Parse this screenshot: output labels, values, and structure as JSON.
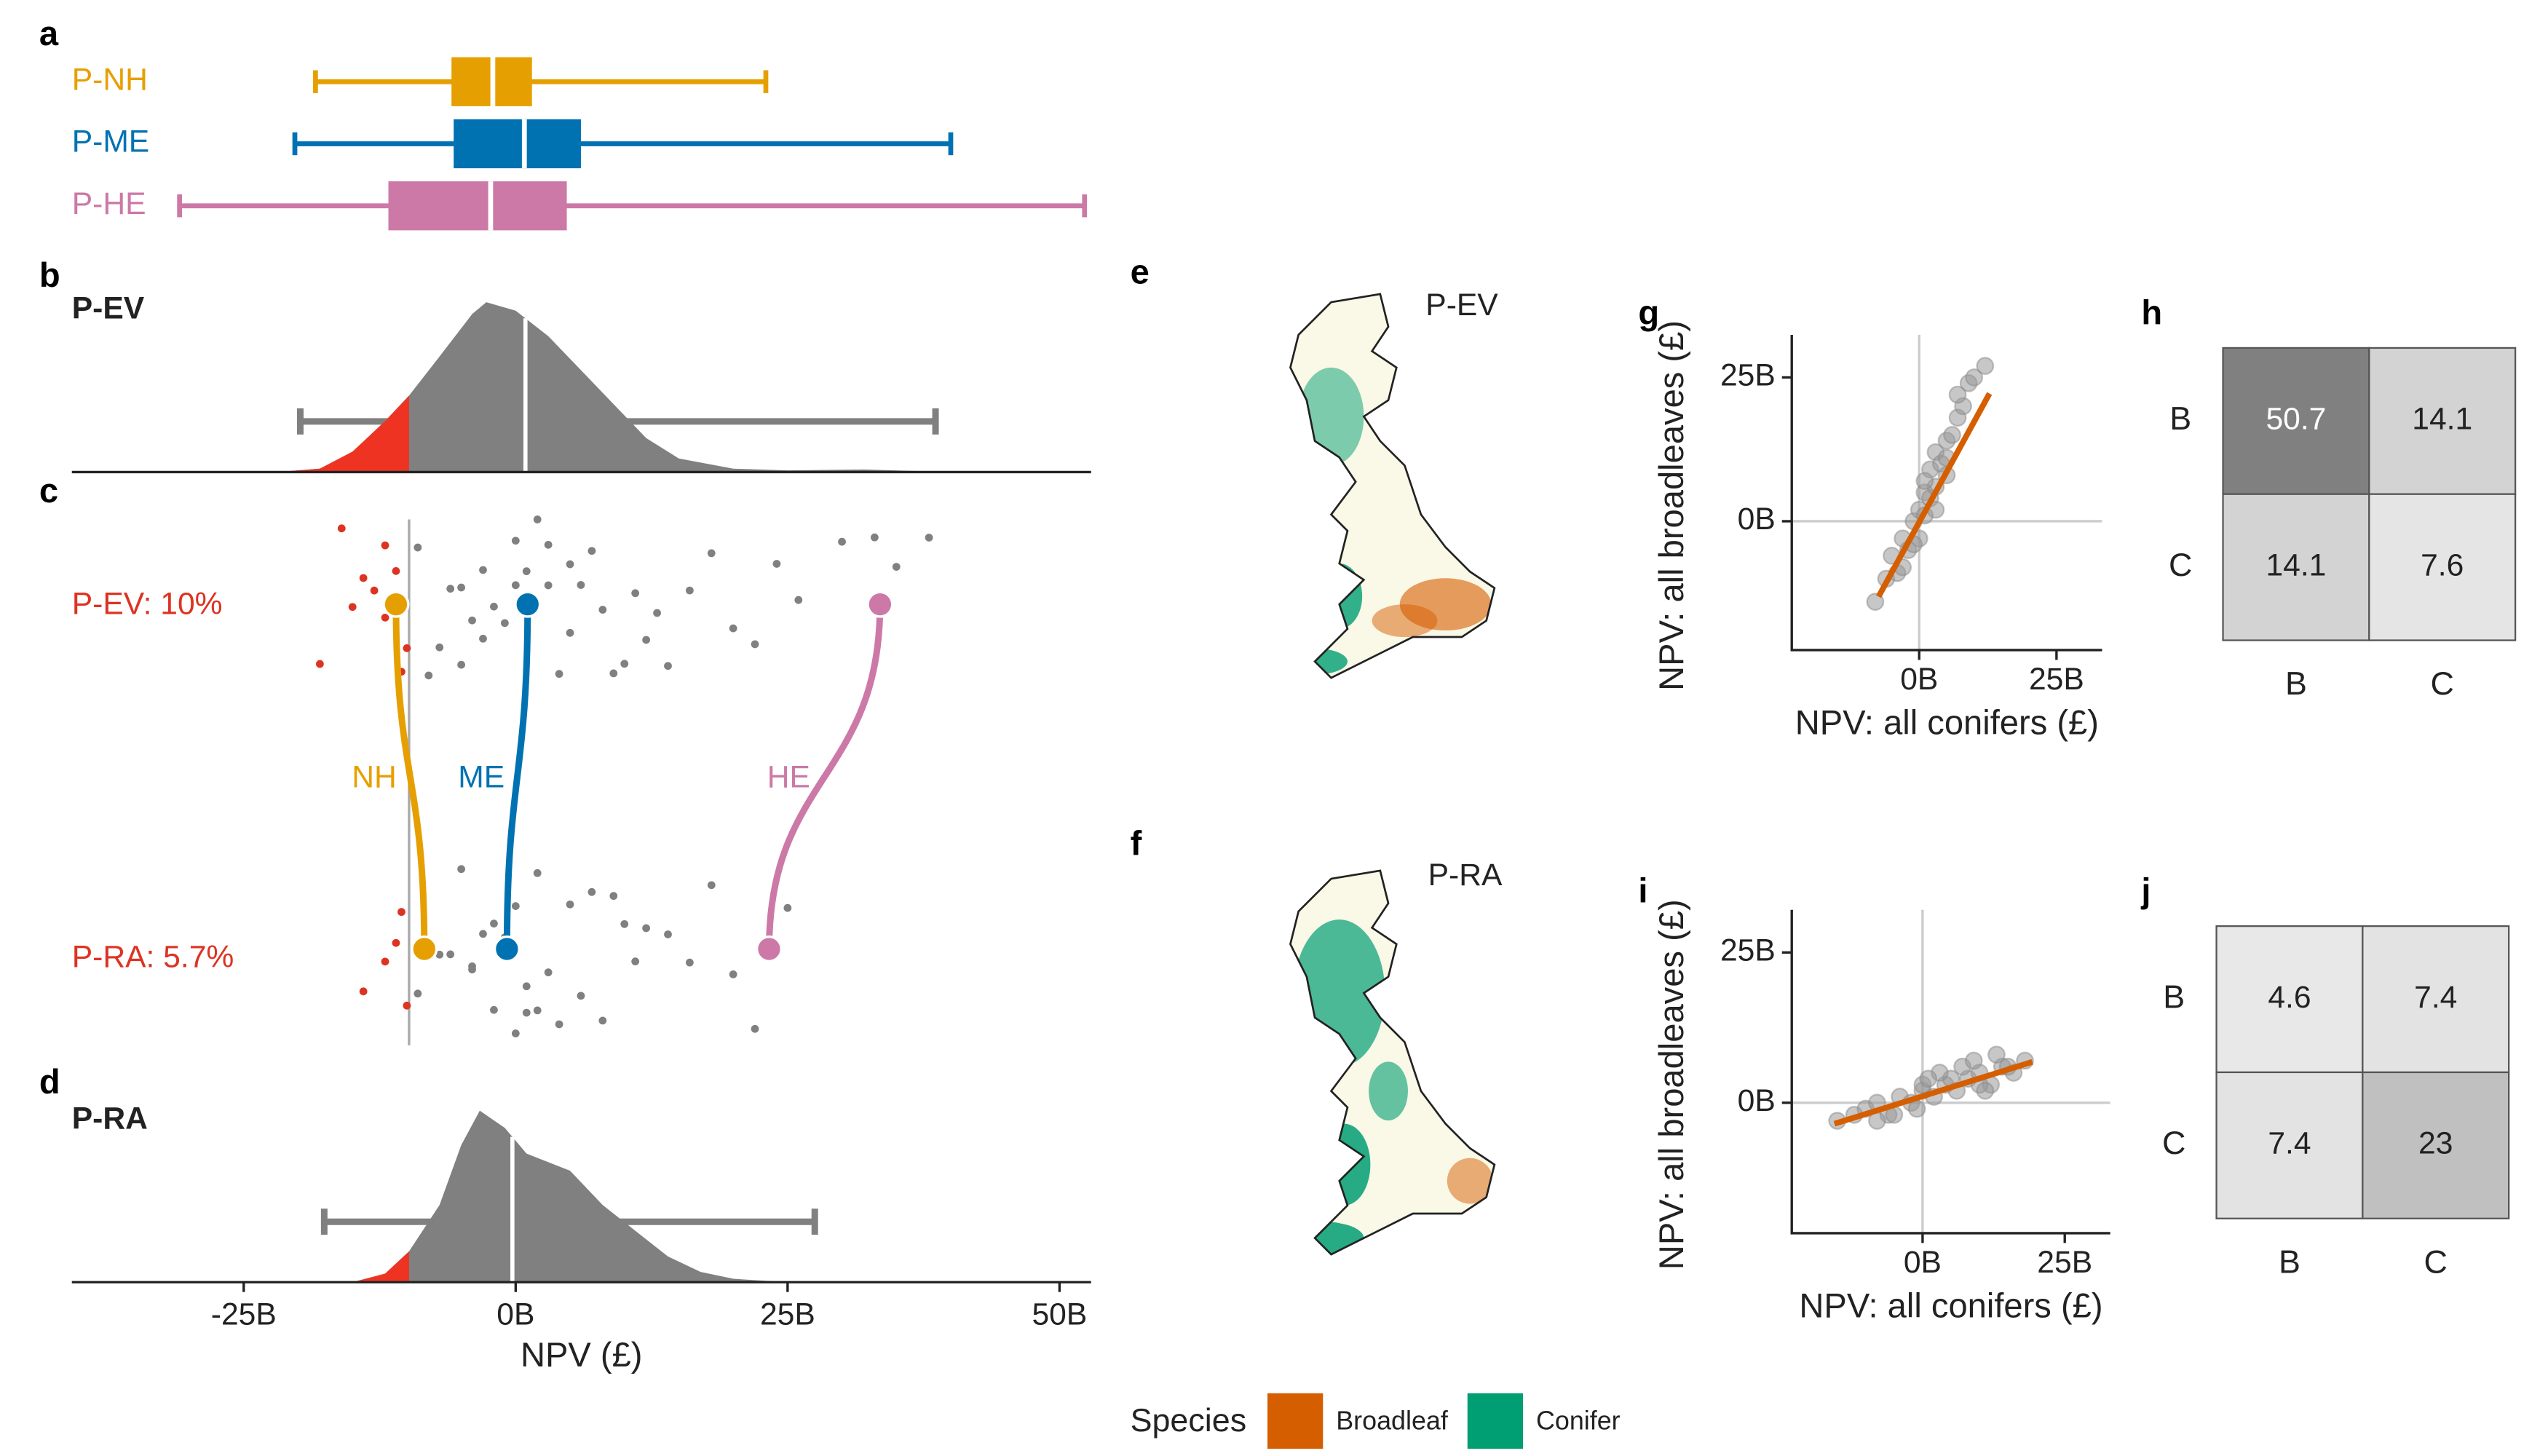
{
  "chart_data": [
    {
      "type": "boxplot",
      "panel": "a",
      "xlim": [
        -40.8,
        52.9
      ],
      "series": [
        {
          "name": "P-NH",
          "color": "#E69F00",
          "min": -18.4,
          "q1": -5.9,
          "median": -2.1,
          "q3": 1.5,
          "max": 23
        },
        {
          "name": "P-ME",
          "color": "#0072B2",
          "min": -20.3,
          "q1": -5.7,
          "median": 0.8,
          "q3": 6,
          "max": 40
        },
        {
          "name": "P-HE",
          "color": "#CC79A7",
          "min": -30.9,
          "q1": -11.7,
          "median": -2.3,
          "q3": 4.7,
          "max": 52.3
        }
      ]
    },
    {
      "type": "density",
      "panel": "b",
      "title": "P-EV",
      "xlim": [
        -40.8,
        52.9
      ],
      "threshold": -9.8,
      "median": 0.9,
      "range": [
        -19.8,
        38.6
      ],
      "color": "#808080",
      "tail_color": "#EE3322",
      "x": [
        -22,
        -18,
        -15,
        -12,
        -9.8,
        -7,
        -4,
        -2.7,
        0,
        3,
        6,
        9,
        12,
        15,
        20,
        25,
        32,
        40
      ],
      "density": [
        0,
        0.02,
        0.12,
        0.3,
        0.45,
        0.68,
        0.93,
        1,
        0.95,
        0.8,
        0.6,
        0.4,
        0.2,
        0.08,
        0.02,
        0.01,
        0.015,
        0
      ]
    },
    {
      "type": "strip",
      "panel": "c",
      "xlim": [
        -40.8,
        52.9
      ],
      "threshold": -9.8,
      "below_color": "#DD3322",
      "above_color": "#808080",
      "rows": [
        {
          "name": "P-EV: 10%",
          "values": [
            -18,
            -16,
            -15,
            -14,
            -13,
            -12,
            -12,
            -11,
            -11,
            -10.5,
            -10,
            -9,
            -8,
            -7,
            -6,
            -5,
            -5,
            -4,
            -3,
            -3,
            -2,
            -1,
            0,
            0,
            1,
            1,
            2,
            3,
            3,
            4,
            5,
            5,
            6,
            7,
            8,
            9,
            10,
            11,
            12,
            13,
            14,
            16,
            18,
            20,
            22,
            24,
            26,
            30,
            33,
            35,
            38
          ]
        },
        {
          "name": "P-RA: 5.7%",
          "values": [
            -14,
            -12,
            -11,
            -10.5,
            -10,
            -9,
            -8,
            -7,
            -6,
            -5,
            -4,
            -4,
            -3,
            -2,
            -2,
            -1,
            0,
            0,
            1,
            1,
            2,
            2,
            3,
            4,
            5,
            6,
            7,
            8,
            9,
            10,
            11,
            12,
            14,
            16,
            18,
            20,
            22,
            25
          ]
        }
      ],
      "links": [
        {
          "name": "NH",
          "color": "#E69F00",
          "from": -11,
          "to": -8.4
        },
        {
          "name": "ME",
          "color": "#0072B2",
          "from": 1.1,
          "to": -0.8
        },
        {
          "name": "HE",
          "color": "#CC79A7",
          "from": 33.5,
          "to": 23.3
        }
      ]
    },
    {
      "type": "density",
      "panel": "d",
      "title": "P-RA",
      "xlim": [
        -40.8,
        52.9
      ],
      "threshold": -9.8,
      "median": -0.3,
      "range": [
        -17.6,
        27.5
      ],
      "color": "#808080",
      "tail_color": "#EE3322",
      "x": [
        -15,
        -12,
        -9.8,
        -7,
        -5,
        -3.3,
        -1,
        1,
        3,
        5,
        8,
        11,
        14,
        17,
        20,
        25
      ],
      "density": [
        0,
        0.05,
        0.18,
        0.45,
        0.8,
        1,
        0.9,
        0.75,
        0.7,
        0.65,
        0.45,
        0.3,
        0.15,
        0.06,
        0.02,
        0
      ],
      "xlabel": "NPV (£)",
      "xticks": [
        {
          "value": -25,
          "label": "-25B"
        },
        {
          "value": 0,
          "label": "0B"
        },
        {
          "value": 25,
          "label": "25B"
        },
        {
          "value": 50,
          "label": "50B"
        }
      ]
    },
    {
      "type": "map",
      "panel": "e",
      "title": "P-EV"
    },
    {
      "type": "map",
      "panel": "f",
      "title": "P-RA"
    },
    {
      "type": "scatter",
      "panel": "g",
      "color": "#999999",
      "xlim": [
        -23.2,
        33.3
      ],
      "ylim": [
        -22.4,
        32.4
      ],
      "xlabel": "NPV: all conifers (£)",
      "ylabel": "NPV: all broadleaves (£)",
      "xticks": [
        {
          "value": 0,
          "label": "0B"
        },
        {
          "value": 25,
          "label": "25B"
        }
      ],
      "yticks": [
        {
          "value": 0,
          "label": "0B"
        },
        {
          "value": 25,
          "label": "25B"
        }
      ],
      "x": [
        -8,
        -6,
        -5,
        -4,
        -3,
        -2,
        -1,
        0,
        0,
        1,
        1,
        2,
        2,
        3,
        3,
        4,
        5,
        5,
        6,
        7,
        8,
        9,
        -3,
        -1,
        1,
        3,
        5,
        7,
        10,
        12
      ],
      "y": [
        -14,
        -10,
        -6,
        -9,
        -3,
        -5,
        0,
        2,
        -3,
        5,
        1,
        4,
        9,
        6,
        12,
        10,
        14,
        8,
        15,
        18,
        20,
        24,
        -8,
        -4,
        7,
        2,
        11,
        22,
        25,
        27
      ],
      "fit": {
        "color": "#D55E00",
        "x": [
          -7.4,
          12.8
        ],
        "y": [
          -13.1,
          22.2
        ]
      }
    },
    {
      "type": "heatmap",
      "panel": "h",
      "rows": [
        "B",
        "C"
      ],
      "cols": [
        "B",
        "C"
      ],
      "values": [
        [
          50.7,
          14.1
        ],
        [
          14.1,
          7.6
        ]
      ],
      "colors": [
        [
          "#808080",
          "#D3D3D3"
        ],
        [
          "#D3D3D3",
          "#E5E5E5"
        ]
      ],
      "text_colors": [
        [
          "#ffffff",
          "#222222"
        ],
        [
          "#222222",
          "#222222"
        ]
      ]
    },
    {
      "type": "scatter",
      "panel": "i",
      "color": "#999999",
      "xlim": [
        -23,
        33
      ],
      "ylim": [
        -21.7,
        32.1
      ],
      "xlabel": "NPV: all conifers (£)",
      "ylabel": "NPV: all broadleaves (£)",
      "xticks": [
        {
          "value": 0,
          "label": "0B"
        },
        {
          "value": 25,
          "label": "25B"
        }
      ],
      "yticks": [
        {
          "value": 0,
          "label": "0B"
        },
        {
          "value": 25,
          "label": "25B"
        }
      ],
      "x": [
        -15,
        -12,
        -10,
        -8,
        -6,
        -4,
        -2,
        0,
        2,
        4,
        6,
        8,
        10,
        12,
        14,
        16,
        18,
        -5,
        0,
        5,
        10,
        -8,
        3,
        7,
        13,
        -1,
        9,
        15,
        11,
        1
      ],
      "y": [
        -3,
        -2,
        -1,
        0,
        -2,
        1,
        0,
        2,
        1,
        3,
        2,
        4,
        5,
        3,
        6,
        5,
        7,
        -2,
        3,
        4,
        3,
        -3,
        5,
        6,
        8,
        -1,
        7,
        6,
        2,
        4
      ],
      "fit": {
        "color": "#D55E00",
        "x": [
          -15.5,
          19.3
        ],
        "y": [
          -3.5,
          6.8
        ]
      }
    },
    {
      "type": "heatmap",
      "panel": "j",
      "rows": [
        "B",
        "C"
      ],
      "cols": [
        "B",
        "C"
      ],
      "values": [
        [
          4.6,
          7.4
        ],
        [
          7.4,
          23
        ]
      ],
      "colors": [
        [
          "#E8E8E8",
          "#E3E3E3"
        ],
        [
          "#E3E3E3",
          "#C0C0C0"
        ]
      ],
      "text_colors": [
        [
          "#222222",
          "#222222"
        ],
        [
          "#222222",
          "#222222"
        ]
      ]
    }
  ],
  "legend": {
    "title": "Species",
    "items": [
      {
        "name": "Broadleaf",
        "color": "#D55E00"
      },
      {
        "name": "Conifer",
        "color": "#009E73"
      }
    ]
  }
}
